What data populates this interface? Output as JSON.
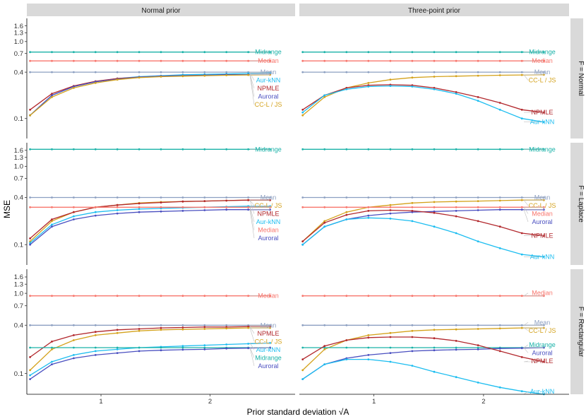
{
  "axes": {
    "xlabel": "Prior standard deviation √A",
    "ylabel": "MSE",
    "xlim": [
      0.32,
      2.78
    ],
    "x_ticks": [
      1,
      2
    ],
    "y_ticks": [
      "0.1",
      "0.4",
      "0.7",
      "1.0",
      "1.3",
      "1.6"
    ],
    "y_tick_values": [
      0.1,
      0.4,
      0.7,
      1.0,
      1.3,
      1.6
    ],
    "y_scale": "log",
    "ylim": [
      0.055,
      2.0
    ]
  },
  "facets": {
    "columns": [
      "Normal prior",
      "Three-point prior"
    ],
    "rows": [
      "F = Normal",
      "F = Laplace",
      "F = Rectangular"
    ]
  },
  "colors": {
    "Midrange": "#1ab2a8",
    "Median": "#f8766d",
    "Mean": "#8c9fc1",
    "Aur-kNN": "#1cbdf0",
    "NPMLE": "#b2282d",
    "Auroral": "#4a4fc0",
    "CC-L / JS": "#d4a21c"
  },
  "chart_data": {
    "type": "line",
    "x": [
      0.35,
      0.55,
      0.75,
      0.95,
      1.15,
      1.35,
      1.55,
      1.75,
      1.95,
      2.15,
      2.35,
      2.55
    ],
    "panels": [
      {
        "row": "F = Normal",
        "column": "Normal prior",
        "series": [
          {
            "name": "Midrange",
            "values": [
              0.73,
              0.73,
              0.73,
              0.73,
              0.73,
              0.73,
              0.73,
              0.73,
              0.73,
              0.73,
              0.73,
              0.73
            ]
          },
          {
            "name": "Median",
            "values": [
              0.56,
              0.56,
              0.56,
              0.56,
              0.56,
              0.56,
              0.56,
              0.56,
              0.56,
              0.56,
              0.56,
              0.56
            ]
          },
          {
            "name": "Mean",
            "values": [
              0.4,
              0.4,
              0.4,
              0.4,
              0.4,
              0.4,
              0.4,
              0.4,
              0.4,
              0.4,
              0.4,
              0.4
            ]
          },
          {
            "name": "Aur-kNN",
            "values": [
              0.11,
              0.2,
              0.26,
              0.3,
              0.33,
              0.35,
              0.36,
              0.37,
              0.375,
              0.38,
              0.385,
              0.39
            ]
          },
          {
            "name": "NPMLE",
            "values": [
              0.13,
              0.21,
              0.265,
              0.305,
              0.33,
              0.345,
              0.355,
              0.36,
              0.365,
              0.37,
              0.372,
              0.375
            ]
          },
          {
            "name": "Auroral",
            "values": [
              0.11,
              0.2,
              0.26,
              0.3,
              0.325,
              0.345,
              0.355,
              0.36,
              0.365,
              0.37,
              0.372,
              0.375
            ]
          },
          {
            "name": "CC-L / JS",
            "values": [
              0.11,
              0.19,
              0.25,
              0.29,
              0.32,
              0.34,
              0.35,
              0.355,
              0.36,
              0.365,
              0.368,
              0.37
            ]
          }
        ]
      },
      {
        "row": "F = Normal",
        "column": "Three-point prior",
        "series": [
          {
            "name": "Midrange",
            "values": [
              0.73,
              0.73,
              0.73,
              0.73,
              0.73,
              0.73,
              0.73,
              0.73,
              0.73,
              0.73,
              0.73,
              0.73
            ]
          },
          {
            "name": "Median",
            "values": [
              0.56,
              0.56,
              0.56,
              0.56,
              0.56,
              0.56,
              0.56,
              0.56,
              0.56,
              0.56,
              0.56,
              0.56
            ]
          },
          {
            "name": "Mean",
            "values": [
              0.4,
              0.4,
              0.4,
              0.4,
              0.4,
              0.4,
              0.4,
              0.4,
              0.4,
              0.4,
              0.4,
              0.4
            ]
          },
          {
            "name": "CC-L / JS",
            "values": [
              0.11,
              0.19,
              0.25,
              0.29,
              0.32,
              0.34,
              0.35,
              0.355,
              0.36,
              0.365,
              0.368,
              0.37
            ]
          },
          {
            "name": "NPMLE",
            "values": [
              0.13,
              0.2,
              0.25,
              0.27,
              0.275,
              0.27,
              0.25,
              0.22,
              0.19,
              0.16,
              0.13,
              0.12
            ]
          },
          {
            "name": "Aur-kNN",
            "values": [
              0.12,
              0.2,
              0.24,
              0.26,
              0.265,
              0.26,
              0.24,
              0.21,
              0.17,
              0.13,
              0.1,
              0.09
            ]
          }
        ]
      },
      {
        "row": "F = Laplace",
        "column": "Normal prior",
        "series": [
          {
            "name": "Midrange",
            "values": [
              1.65,
              1.65,
              1.65,
              1.65,
              1.65,
              1.65,
              1.65,
              1.65,
              1.65,
              1.65,
              1.65,
              1.65
            ]
          },
          {
            "name": "Mean",
            "values": [
              0.4,
              0.4,
              0.4,
              0.4,
              0.4,
              0.4,
              0.4,
              0.4,
              0.4,
              0.4,
              0.4,
              0.4
            ]
          },
          {
            "name": "CC-L / JS",
            "values": [
              0.11,
              0.2,
              0.26,
              0.3,
              0.32,
              0.34,
              0.35,
              0.355,
              0.36,
              0.365,
              0.37,
              0.37
            ]
          },
          {
            "name": "NPMLE",
            "values": [
              0.12,
              0.21,
              0.26,
              0.3,
              0.32,
              0.335,
              0.345,
              0.355,
              0.36,
              0.365,
              0.37,
              0.37
            ]
          },
          {
            "name": "Aur-kNN",
            "values": [
              0.105,
              0.18,
              0.23,
              0.26,
              0.275,
              0.285,
              0.29,
              0.295,
              0.3,
              0.305,
              0.31,
              0.31
            ]
          },
          {
            "name": "Median",
            "values": [
              0.3,
              0.3,
              0.3,
              0.3,
              0.3,
              0.3,
              0.3,
              0.3,
              0.3,
              0.3,
              0.3,
              0.3
            ]
          },
          {
            "name": "Auroral",
            "values": [
              0.1,
              0.17,
              0.21,
              0.235,
              0.25,
              0.26,
              0.265,
              0.27,
              0.275,
              0.28,
              0.28,
              0.28
            ]
          }
        ]
      },
      {
        "row": "F = Laplace",
        "column": "Three-point prior",
        "series": [
          {
            "name": "Midrange",
            "values": [
              1.65,
              1.65,
              1.65,
              1.65,
              1.65,
              1.65,
              1.65,
              1.65,
              1.65,
              1.65,
              1.65,
              1.65
            ]
          },
          {
            "name": "Mean",
            "values": [
              0.4,
              0.4,
              0.4,
              0.4,
              0.4,
              0.4,
              0.4,
              0.4,
              0.4,
              0.4,
              0.4,
              0.4
            ]
          },
          {
            "name": "CC-L / JS",
            "values": [
              0.11,
              0.2,
              0.26,
              0.3,
              0.32,
              0.34,
              0.35,
              0.355,
              0.36,
              0.365,
              0.37,
              0.37
            ]
          },
          {
            "name": "Median",
            "values": [
              0.3,
              0.3,
              0.3,
              0.3,
              0.3,
              0.3,
              0.3,
              0.3,
              0.3,
              0.3,
              0.3,
              0.3
            ]
          },
          {
            "name": "Auroral",
            "values": [
              0.1,
              0.17,
              0.21,
              0.235,
              0.25,
              0.26,
              0.265,
              0.27,
              0.275,
              0.28,
              0.28,
              0.28
            ]
          },
          {
            "name": "NPMLE",
            "values": [
              0.11,
              0.19,
              0.24,
              0.27,
              0.275,
              0.27,
              0.255,
              0.23,
              0.2,
              0.17,
              0.14,
              0.13
            ]
          },
          {
            "name": "Aur-kNN",
            "values": [
              0.1,
              0.17,
              0.21,
              0.22,
              0.215,
              0.2,
              0.17,
              0.14,
              0.11,
              0.09,
              0.075,
              0.07
            ]
          }
        ]
      },
      {
        "row": "F = Rectangular",
        "column": "Normal prior",
        "series": [
          {
            "name": "Median",
            "values": [
              0.93,
              0.93,
              0.93,
              0.93,
              0.93,
              0.93,
              0.93,
              0.93,
              0.93,
              0.93,
              0.93,
              0.93
            ]
          },
          {
            "name": "Mean",
            "values": [
              0.4,
              0.4,
              0.4,
              0.4,
              0.4,
              0.4,
              0.4,
              0.4,
              0.4,
              0.4,
              0.4,
              0.4
            ]
          },
          {
            "name": "NPMLE",
            "values": [
              0.16,
              0.25,
              0.3,
              0.33,
              0.35,
              0.36,
              0.37,
              0.375,
              0.38,
              0.38,
              0.385,
              0.385
            ]
          },
          {
            "name": "CC-L / JS",
            "values": [
              0.11,
              0.2,
              0.26,
              0.3,
              0.32,
              0.34,
              0.35,
              0.355,
              0.36,
              0.365,
              0.37,
              0.37
            ]
          },
          {
            "name": "Aur-kNN",
            "values": [
              0.095,
              0.14,
              0.17,
              0.19,
              0.2,
              0.21,
              0.215,
              0.22,
              0.225,
              0.23,
              0.235,
              0.24
            ]
          },
          {
            "name": "Midrange",
            "values": [
              0.21,
              0.21,
              0.21,
              0.21,
              0.21,
              0.21,
              0.21,
              0.21,
              0.21,
              0.21,
              0.21,
              0.21
            ]
          },
          {
            "name": "Auroral",
            "values": [
              0.085,
              0.13,
              0.155,
              0.17,
              0.18,
              0.19,
              0.195,
              0.198,
              0.2,
              0.205,
              0.207,
              0.21
            ]
          }
        ]
      },
      {
        "row": "F = Rectangular",
        "column": "Three-point prior",
        "series": [
          {
            "name": "Median",
            "values": [
              0.93,
              0.93,
              0.93,
              0.93,
              0.93,
              0.93,
              0.93,
              0.93,
              0.93,
              0.93,
              0.93,
              0.93
            ]
          },
          {
            "name": "Mean",
            "values": [
              0.4,
              0.4,
              0.4,
              0.4,
              0.4,
              0.4,
              0.4,
              0.4,
              0.4,
              0.4,
              0.4,
              0.4
            ]
          },
          {
            "name": "CC-L / JS",
            "values": [
              0.11,
              0.2,
              0.26,
              0.3,
              0.32,
              0.34,
              0.35,
              0.355,
              0.36,
              0.365,
              0.37,
              0.37
            ]
          },
          {
            "name": "Midrange",
            "values": [
              0.21,
              0.21,
              0.21,
              0.21,
              0.21,
              0.21,
              0.21,
              0.21,
              0.21,
              0.21,
              0.21,
              0.21
            ]
          },
          {
            "name": "Auroral",
            "values": [
              0.085,
              0.13,
              0.155,
              0.17,
              0.18,
              0.19,
              0.195,
              0.198,
              0.2,
              0.205,
              0.207,
              0.21
            ]
          },
          {
            "name": "NPMLE",
            "values": [
              0.15,
              0.22,
              0.26,
              0.28,
              0.285,
              0.285,
              0.275,
              0.255,
              0.225,
              0.19,
              0.16,
              0.14
            ]
          },
          {
            "name": "Aur-kNN",
            "values": [
              0.085,
              0.13,
              0.15,
              0.15,
              0.14,
              0.125,
              0.105,
              0.09,
              0.077,
              0.067,
              0.06,
              0.055
            ]
          }
        ]
      }
    ]
  }
}
